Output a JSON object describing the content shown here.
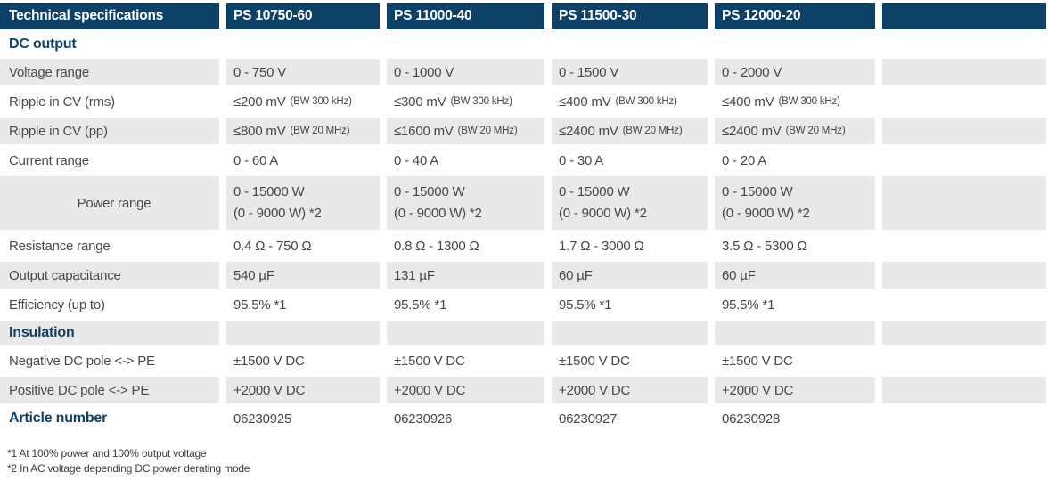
{
  "colors": {
    "header_bg": "#0d4168",
    "stripe_bg": "#e9e9e9",
    "accent_text": "#0d4168",
    "body_text": "#474747"
  },
  "table": {
    "header": {
      "col0": "Technical specifications",
      "col1": "PS 10750-60",
      "col2": "PS 11000-40",
      "col3": "PS 11500-30",
      "col4": "PS 12000-20"
    },
    "rows": [
      {
        "type": "section",
        "label": "DC output"
      },
      {
        "type": "data",
        "label": "Voltage range",
        "cells": [
          {
            "t": "0 - 750 V"
          },
          {
            "t": "0 - 1000 V"
          },
          {
            "t": "0 - 1500 V"
          },
          {
            "t": "0 - 2000 V"
          }
        ]
      },
      {
        "type": "data",
        "label": "Ripple in CV (rms)",
        "cells": [
          {
            "t": "≤200 mV",
            "n": "(BW 300 kHz)"
          },
          {
            "t": "≤300 mV",
            "n": "(BW 300 kHz)"
          },
          {
            "t": "≤400 mV",
            "n": "(BW 300 kHz)"
          },
          {
            "t": "≤400 mV",
            "n": "(BW 300 kHz)"
          }
        ]
      },
      {
        "type": "data",
        "label": "Ripple in CV (pp)",
        "cells": [
          {
            "t": "≤800 mV",
            "n": "(BW 20 MHz)"
          },
          {
            "t": "≤1600 mV",
            "n": "(BW 20 MHz)"
          },
          {
            "t": "≤2400 mV",
            "n": "(BW 20 MHz)"
          },
          {
            "t": "≤2400 mV",
            "n": "(BW 20 MHz)"
          }
        ]
      },
      {
        "type": "data",
        "label": "Current range",
        "cells": [
          {
            "t": "0 - 60 A"
          },
          {
            "t": "0 - 40 A"
          },
          {
            "t": "0 - 30 A"
          },
          {
            "t": "0 - 20 A"
          }
        ]
      },
      {
        "type": "data",
        "label": "Power range",
        "cells": [
          {
            "t": "0 - 15000 W",
            "t2": "(0 - 9000 W) *2"
          },
          {
            "t": "0 - 15000 W",
            "t2": "(0 - 9000 W) *2"
          },
          {
            "t": "0 - 15000 W",
            "t2": "(0 - 9000 W) *2"
          },
          {
            "t": "0 - 15000 W",
            "t2": "(0 - 9000 W) *2"
          }
        ]
      },
      {
        "type": "data",
        "label": "Resistance range",
        "cells": [
          {
            "t": "0.4 Ω - 750 Ω"
          },
          {
            "t": "0.8 Ω - 1300 Ω"
          },
          {
            "t": "1.7 Ω - 3000 Ω"
          },
          {
            "t": "3.5 Ω - 5300 Ω"
          }
        ]
      },
      {
        "type": "data",
        "label": "Output capacitance",
        "cells": [
          {
            "t": "540 µF"
          },
          {
            "t": "131 µF"
          },
          {
            "t": "60 µF"
          },
          {
            "t": "60 µF"
          }
        ]
      },
      {
        "type": "data",
        "label": "Efficiency (up to)",
        "cells": [
          {
            "t": "95.5% *1"
          },
          {
            "t": "95.5% *1"
          },
          {
            "t": "95.5% *1"
          },
          {
            "t": "95.5% *1"
          }
        ]
      },
      {
        "type": "section",
        "label": "Insulation"
      },
      {
        "type": "data",
        "label": "Negative DC pole <-> PE",
        "cells": [
          {
            "t": "±1500 V DC"
          },
          {
            "t": "±1500 V DC"
          },
          {
            "t": "±1500 V DC"
          },
          {
            "t": "±1500 V DC"
          }
        ]
      },
      {
        "type": "data",
        "label": "Positive DC pole <-> PE",
        "cells": [
          {
            "t": "+2000 V DC"
          },
          {
            "t": "+2000 V DC"
          },
          {
            "t": "+2000 V DC"
          },
          {
            "t": "+2000 V DC"
          }
        ]
      },
      {
        "type": "article",
        "label": "Article number",
        "cells": [
          {
            "t": "06230925"
          },
          {
            "t": "06230926"
          },
          {
            "t": "06230927"
          },
          {
            "t": "06230928"
          }
        ]
      }
    ]
  },
  "footnotes": {
    "fn1": "*1 At 100% power and 100% output voltage",
    "fn2": "*2 In AC voltage depending DC power derating mode"
  }
}
